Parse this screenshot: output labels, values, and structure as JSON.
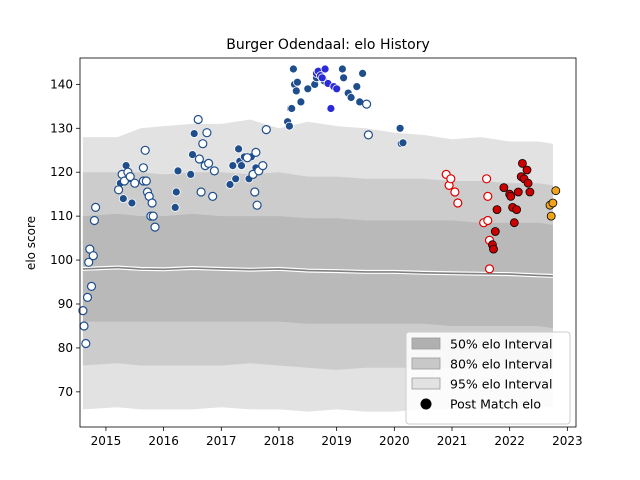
{
  "chart_data": {
    "type": "scatter",
    "title": "Burger Odendaal: elo History",
    "xlabel": "",
    "ylabel": "elo score",
    "xlim": [
      2014.55,
      2023.15
    ],
    "ylim": [
      62,
      146
    ],
    "x_ticks": [
      2015,
      2016,
      2017,
      2018,
      2019,
      2020,
      2021,
      2022,
      2023
    ],
    "x_tick_labels": [
      "2015",
      "2016",
      "2017",
      "2018",
      "2019",
      "2020",
      "2021",
      "2022",
      "2023"
    ],
    "y_ticks": [
      70,
      80,
      90,
      100,
      110,
      120,
      130,
      140
    ],
    "y_tick_labels": [
      "70",
      "80",
      "90",
      "100",
      "110",
      "120",
      "130",
      "140"
    ],
    "legend": {
      "placement": "lower right",
      "entries": [
        {
          "label": "50% elo Interval",
          "color": "#b0b0b0"
        },
        {
          "label": "80% elo Interval",
          "color": "#c8c8c8"
        },
        {
          "label": "95% elo Interval",
          "color": "#e2e2e2"
        },
        {
          "label": "Post Match elo",
          "color": "#000000"
        }
      ]
    },
    "bands": {
      "x": [
        2014.6,
        2015.2,
        2015.6,
        2016.0,
        2016.5,
        2017.0,
        2017.5,
        2018.0,
        2018.5,
        2019.0,
        2019.5,
        2020.0,
        2020.5,
        2021.0,
        2021.5,
        2022.0,
        2022.5,
        2022.75
      ],
      "median": [
        98.0,
        98.3,
        98.0,
        97.9,
        98.2,
        98.0,
        97.8,
        98.0,
        97.6,
        97.5,
        97.3,
        97.3,
        97.1,
        97.0,
        96.9,
        96.8,
        96.5,
        96.4
      ],
      "band50": {
        "upper": [
          110,
          110.5,
          110,
          110,
          110.5,
          110,
          110,
          110,
          109.5,
          109.5,
          109,
          109,
          109,
          109,
          108.5,
          108.5,
          108.5,
          108
        ],
        "lower": [
          86,
          86,
          86,
          86,
          86,
          86,
          86,
          86,
          85.5,
          85.5,
          85.5,
          85.5,
          85.5,
          85,
          85,
          85,
          85,
          84.5
        ]
      },
      "band80": {
        "upper": [
          120,
          120,
          120,
          119.5,
          120,
          120,
          119.5,
          120,
          119,
          119,
          118.5,
          118.5,
          118.5,
          118,
          118,
          117.5,
          117.5,
          117
        ],
        "lower": [
          76,
          76.5,
          76,
          76,
          76,
          76,
          76.5,
          76,
          75.5,
          75,
          75.5,
          75.5,
          75.5,
          75.5,
          75,
          75,
          75.5,
          75.5
        ]
      },
      "band95": {
        "upper": [
          128,
          128,
          130,
          130.5,
          131,
          131,
          132,
          130,
          131.5,
          130.5,
          130,
          129,
          128.5,
          127.5,
          128,
          127,
          127,
          126.5
        ],
        "lower": [
          66,
          66.5,
          66,
          66,
          66,
          66.5,
          66,
          66,
          65.5,
          66,
          65.5,
          65.5,
          66,
          66,
          66,
          66,
          66.5,
          66.5
        ]
      }
    },
    "series": [
      {
        "color": "#1f4e8c",
        "marker": "filled",
        "points": [
          [
            2015.25,
            117.5
          ],
          [
            2015.3,
            114
          ],
          [
            2015.35,
            121.5
          ],
          [
            2015.45,
            113
          ],
          [
            2015.4,
            118.5
          ],
          [
            2016.2,
            112
          ],
          [
            2016.22,
            115.5
          ],
          [
            2016.25,
            120.3
          ],
          [
            2016.47,
            119.5
          ],
          [
            2016.5,
            124
          ],
          [
            2016.53,
            128.8
          ],
          [
            2017.15,
            117.2
          ],
          [
            2017.2,
            121.5
          ],
          [
            2017.25,
            118.5
          ],
          [
            2017.3,
            125.3
          ],
          [
            2017.32,
            122.5
          ],
          [
            2017.35,
            121.5
          ],
          [
            2017.4,
            123.5
          ],
          [
            2017.48,
            118.5
          ],
          [
            2017.52,
            123.5
          ],
          [
            2017.6,
            121
          ],
          [
            2018.15,
            131.5
          ],
          [
            2018.18,
            130.5
          ],
          [
            2018.2,
            134.5
          ],
          [
            2018.22,
            134.5
          ],
          [
            2018.25,
            143.5
          ],
          [
            2018.27,
            140
          ],
          [
            2018.3,
            138.5
          ],
          [
            2018.32,
            140.5
          ],
          [
            2018.38,
            136
          ],
          [
            2018.5,
            139
          ],
          [
            2018.62,
            140
          ],
          [
            2018.65,
            141.5
          ],
          [
            2018.78,
            140.8
          ],
          [
            2019.1,
            143.5
          ],
          [
            2019.12,
            141.5
          ],
          [
            2019.2,
            138
          ],
          [
            2019.25,
            137
          ],
          [
            2019.35,
            139.5
          ],
          [
            2019.4,
            136
          ],
          [
            2019.45,
            142.5
          ],
          [
            2020.1,
            130
          ],
          [
            2020.12,
            126.5
          ],
          [
            2020.15,
            126.7
          ]
        ]
      },
      {
        "color": "#2a2ad8",
        "marker": "filled",
        "points": [
          [
            2018.65,
            142.5
          ],
          [
            2018.68,
            143
          ],
          [
            2018.72,
            142
          ],
          [
            2018.75,
            141.5
          ],
          [
            2018.8,
            143.5
          ],
          [
            2018.85,
            140.2
          ],
          [
            2018.9,
            134.5
          ],
          [
            2018.95,
            139.5
          ],
          [
            2019.0,
            139
          ]
        ]
      },
      {
        "color": "#1f4e8c",
        "marker": "hollow",
        "points": [
          [
            2014.6,
            88.5
          ],
          [
            2014.62,
            85
          ],
          [
            2014.65,
            81
          ],
          [
            2014.68,
            91.5
          ],
          [
            2014.7,
            99.5
          ],
          [
            2014.72,
            102.5
          ],
          [
            2014.75,
            94
          ],
          [
            2014.78,
            101
          ],
          [
            2014.8,
            109
          ],
          [
            2014.82,
            112
          ],
          [
            2015.22,
            116
          ],
          [
            2015.28,
            119.5
          ],
          [
            2015.32,
            118
          ],
          [
            2015.38,
            120
          ],
          [
            2015.42,
            119
          ],
          [
            2015.5,
            117.5
          ],
          [
            2015.65,
            118
          ],
          [
            2015.65,
            121
          ],
          [
            2015.68,
            125
          ],
          [
            2015.7,
            118
          ],
          [
            2015.72,
            115.5
          ],
          [
            2015.75,
            114.5
          ],
          [
            2015.78,
            110
          ],
          [
            2015.8,
            113
          ],
          [
            2015.82,
            110
          ],
          [
            2015.85,
            107.5
          ],
          [
            2016.6,
            132
          ],
          [
            2016.62,
            123
          ],
          [
            2016.65,
            115.5
          ],
          [
            2016.68,
            126.5
          ],
          [
            2016.72,
            121.5
          ],
          [
            2016.75,
            129
          ],
          [
            2016.78,
            122
          ],
          [
            2016.85,
            114.5
          ],
          [
            2016.88,
            120.3
          ],
          [
            2017.45,
            123.3
          ],
          [
            2017.55,
            119.5
          ],
          [
            2017.58,
            115.5
          ],
          [
            2017.6,
            124.5
          ],
          [
            2017.62,
            112.5
          ],
          [
            2017.65,
            120.3
          ],
          [
            2017.72,
            121.5
          ],
          [
            2017.78,
            129.7
          ],
          [
            2019.52,
            135.5
          ],
          [
            2019.55,
            128.5
          ]
        ]
      },
      {
        "color": "#e00000",
        "marker": "hollow",
        "points": [
          [
            2020.9,
            119.5
          ],
          [
            2020.95,
            117
          ],
          [
            2020.98,
            118.5
          ],
          [
            2021.05,
            115.5
          ],
          [
            2021.1,
            113
          ],
          [
            2021.55,
            108.5
          ],
          [
            2021.6,
            118.5
          ],
          [
            2021.62,
            109
          ],
          [
            2021.65,
            104.5
          ],
          [
            2021.62,
            114.5
          ],
          [
            2021.65,
            98
          ]
        ]
      },
      {
        "color": "#cc0000",
        "marker": "filled",
        "points": [
          [
            2021.7,
            103.5
          ],
          [
            2021.72,
            102.5
          ],
          [
            2021.75,
            106.5
          ],
          [
            2021.78,
            111.5
          ],
          [
            2021.9,
            116.5
          ],
          [
            2022.0,
            115
          ],
          [
            2022.02,
            114.5
          ],
          [
            2022.05,
            112
          ],
          [
            2022.08,
            108.5
          ],
          [
            2022.12,
            111.5
          ],
          [
            2022.15,
            115.5
          ],
          [
            2022.2,
            119
          ],
          [
            2022.22,
            122
          ],
          [
            2022.25,
            118.5
          ],
          [
            2022.3,
            120.5
          ],
          [
            2022.32,
            117.5
          ],
          [
            2022.35,
            115.5
          ]
        ]
      },
      {
        "color": "#f0a41c",
        "marker": "filled",
        "points": [
          [
            2022.7,
            112.5
          ],
          [
            2022.72,
            110
          ],
          [
            2022.75,
            113
          ],
          [
            2022.8,
            115.8
          ]
        ]
      }
    ]
  }
}
